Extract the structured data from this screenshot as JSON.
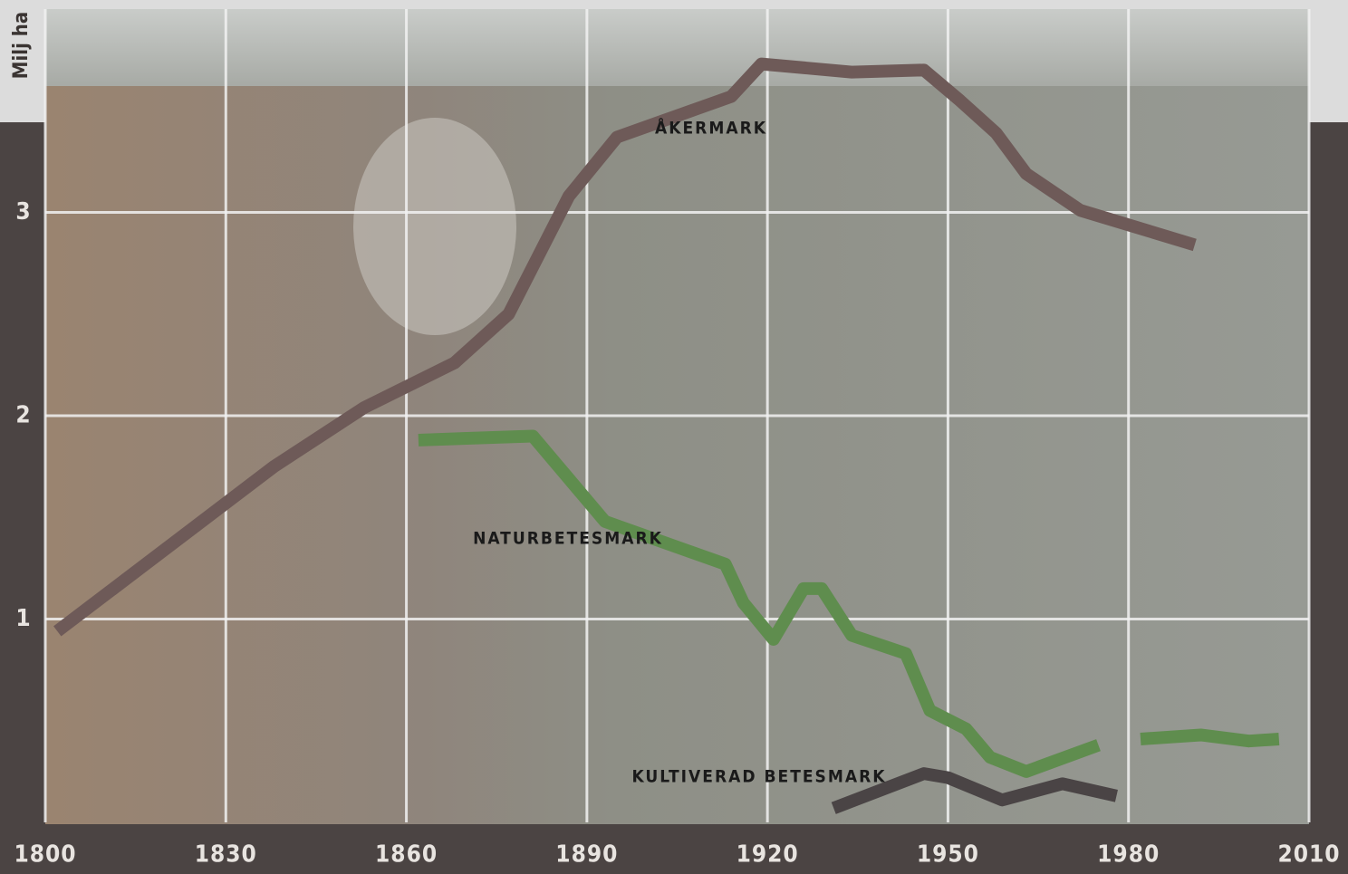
{
  "chart_data": {
    "type": "line",
    "ylabel": "Milj ha",
    "xlim": [
      1800,
      2010
    ],
    "ylim": [
      0,
      4
    ],
    "xticks": [
      1800,
      1830,
      1860,
      1890,
      1920,
      1950,
      1980,
      2010
    ],
    "yticks": [
      1,
      2,
      3
    ],
    "grid": true,
    "series": [
      {
        "name": "ÅKERMARK",
        "color": "#6e5a58",
        "x": [
          1802,
          1838,
          1853,
          1868,
          1877,
          1887,
          1895,
          1914,
          1919,
          1934,
          1946,
          1952,
          1958,
          1963,
          1972,
          1991
        ],
        "values": [
          0.94,
          1.75,
          2.04,
          2.26,
          2.5,
          3.08,
          3.37,
          3.57,
          3.73,
          3.69,
          3.7,
          3.55,
          3.39,
          3.19,
          3.01,
          2.84
        ]
      },
      {
        "name": "NATURBETESMARK",
        "color": "#5f8d4e",
        "x": [
          1862,
          1881,
          1893,
          1913,
          1916,
          1921,
          1926,
          1929,
          1934,
          1943,
          1947,
          1953,
          1957,
          1963,
          1975,
          null,
          1982,
          1992,
          2000,
          2005
        ],
        "values": [
          1.88,
          1.9,
          1.48,
          1.27,
          1.08,
          0.9,
          1.15,
          1.15,
          0.92,
          0.83,
          0.55,
          0.46,
          0.32,
          0.25,
          0.38,
          null,
          0.41,
          0.43,
          0.4,
          0.41
        ]
      },
      {
        "name": "KULTIVERAD BETESMARK",
        "color": "#4a4445",
        "x": [
          1931,
          1946,
          1950,
          1959,
          1969,
          1978
        ],
        "values": [
          0.07,
          0.24,
          0.22,
          0.11,
          0.19,
          0.13
        ]
      }
    ]
  }
}
